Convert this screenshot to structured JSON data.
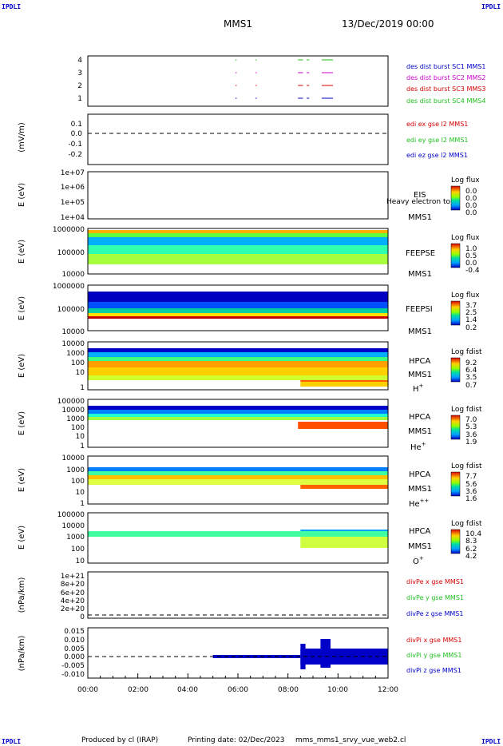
{
  "header": {
    "corner_label": "IPDLI",
    "title": "MMS1",
    "date": "13/Dec/2019 00:00"
  },
  "footer": {
    "produced_by": "Produced by cl (IRAP)",
    "printing_date": "Printing date: 02/Dec/2023",
    "script_name": "mms_mms1_srvy_vue_web2.cl"
  },
  "colors": {
    "red": "#d40000",
    "green": "#1fbf1f",
    "blue": "#0000c8",
    "magenta": "#cc00cc"
  },
  "chart_data": {
    "type": "multi-panel",
    "x_axis": {
      "range": [
        "00:00",
        "12:00"
      ],
      "tick_labels": [
        "00:00",
        "02:00",
        "04:00",
        "06:00",
        "08:00",
        "10:00",
        "12:00"
      ]
    },
    "panels": [
      {
        "id": "burst",
        "ylabel": "",
        "yticks": [
          "4",
          "3",
          "2",
          "1"
        ],
        "legend": [
          {
            "text": "des dist burst SC1 MMS1",
            "color": "#0000c8"
          },
          {
            "text": "des dist burst SC2 MMS2",
            "color": "#cc00cc"
          },
          {
            "text": "des dist burst SC3 MMS3",
            "color": "#d40000"
          },
          {
            "text": "des dist burst SC4 MMS4",
            "color": "#1fbf1f"
          }
        ],
        "intervals_hours": [
          [
            5.9,
            5.95
          ],
          [
            6.7,
            6.75
          ],
          [
            8.4,
            8.6
          ],
          [
            8.75,
            8.85
          ],
          [
            9.35,
            9.8
          ]
        ]
      },
      {
        "id": "edi",
        "ylabel": "(mV/m)",
        "yticks": [
          "0.1",
          "0.0",
          "-0.1",
          "-0.2"
        ],
        "legend": [
          {
            "text": "edi ex gse l2 MMS1",
            "color": "#d40000"
          },
          {
            "text": "edi ey gse l2 MMS1",
            "color": "#1fbf1f"
          },
          {
            "text": "edi ez gse l2 MMS1",
            "color": "#0000c8"
          }
        ]
      },
      {
        "id": "eis",
        "ylabel": "E (eV)",
        "yticks": [
          "1e+07",
          "1e+06",
          "1e+05",
          "1e+04"
        ],
        "instrument": [
          "EIS",
          "MMS1"
        ],
        "overlay": "Heavy electron to",
        "colorbar": {
          "title": "Log flux",
          "ticks": [
            "0.0",
            "0.0",
            "0.0",
            "0.0"
          ]
        }
      },
      {
        "id": "feepse",
        "ylabel": "E (eV)",
        "yticks": [
          "1000000",
          "100000",
          "10000"
        ],
        "instrument": [
          "FEEPSE",
          "MMS1"
        ],
        "colorbar": {
          "title": "Log flux",
          "ticks": [
            "1.0",
            "0.5",
            "0.0",
            "-0.4"
          ]
        }
      },
      {
        "id": "feepsi",
        "ylabel": "E (eV)",
        "yticks": [
          "1000000",
          "100000",
          "10000"
        ],
        "instrument": [
          "FEEPSI",
          "MMS1"
        ],
        "colorbar": {
          "title": "Log flux",
          "ticks": [
            "3.7",
            "2.5",
            "1.4",
            "0.2"
          ]
        }
      },
      {
        "id": "hpca-h",
        "ylabel": "E (eV)",
        "yticks": [
          "10000",
          "1000",
          "100",
          "10",
          "1"
        ],
        "instrument": [
          "HPCA",
          "MMS1"
        ],
        "species": "H",
        "charge": "+",
        "colorbar": {
          "title": "Log fdist",
          "ticks": [
            "9.2",
            "6.4",
            "3.5",
            "0.7"
          ]
        }
      },
      {
        "id": "hpca-he",
        "ylabel": "E (eV)",
        "yticks": [
          "100000",
          "10000",
          "1000",
          "100",
          "10",
          "1"
        ],
        "instrument": [
          "HPCA",
          "MMS1"
        ],
        "species": "He",
        "charge": "+",
        "colorbar": {
          "title": "Log fdist",
          "ticks": [
            "7.0",
            "5.3",
            "3.6",
            "1.9"
          ]
        }
      },
      {
        "id": "hpca-he2",
        "ylabel": "E (eV)",
        "yticks": [
          "10000",
          "1000",
          "100",
          "10",
          "1"
        ],
        "instrument": [
          "HPCA",
          "MMS1"
        ],
        "species": "He",
        "charge": "++",
        "colorbar": {
          "title": "Log fdist",
          "ticks": [
            "7.7",
            "5.6",
            "3.6",
            "1.6"
          ]
        }
      },
      {
        "id": "hpca-o",
        "ylabel": "E (eV)",
        "yticks": [
          "100000",
          "10000",
          "1000",
          "100",
          "10"
        ],
        "instrument": [
          "HPCA",
          "MMS1"
        ],
        "species": "O",
        "charge": "+",
        "colorbar": {
          "title": "Log fdist",
          "ticks": [
            "10.4",
            "8.3",
            "6.2",
            "4.2"
          ]
        }
      },
      {
        "id": "divpe",
        "ylabel": "(nPa/km)",
        "yticks": [
          "1e+21",
          "8e+20",
          "6e+20",
          "4e+20",
          "2e+20",
          "0"
        ],
        "legend": [
          {
            "text": "divPe x gse MMS1",
            "color": "#d40000"
          },
          {
            "text": "divPe y gse MMS1",
            "color": "#1fbf1f"
          },
          {
            "text": "divPe z gse MMS1",
            "color": "#0000c8"
          }
        ]
      },
      {
        "id": "divpi",
        "ylabel": "(nPa/km)",
        "yticks": [
          "0.015",
          "0.010",
          "0.005",
          "0.000",
          "-0.005",
          "-0.010"
        ],
        "legend": [
          {
            "text": "divPi x gse MMS1",
            "color": "#d40000"
          },
          {
            "text": "divPi y gse MMS1",
            "color": "#1fbf1f"
          },
          {
            "text": "divPi z gse MMS1",
            "color": "#0000c8"
          }
        ]
      }
    ]
  }
}
